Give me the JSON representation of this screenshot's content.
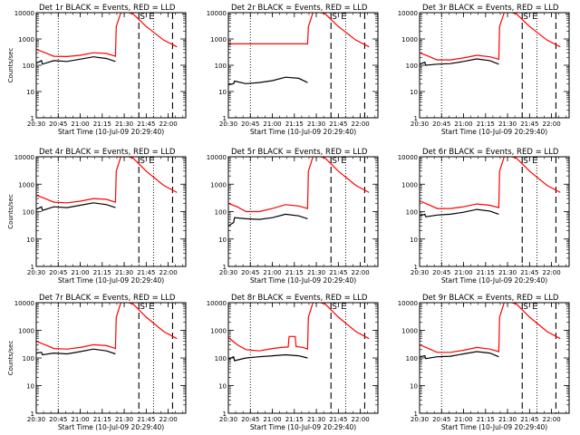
{
  "chart_data": [
    {
      "type": "line",
      "title": "Det 1r BLACK = Events, RED = LLD",
      "xlabel": "Start Time (10-Jul-09 20:29:40)",
      "ylabel": "Counts/sec",
      "ylog": true,
      "ylim": [
        1,
        10000
      ],
      "xlim": [
        20.5,
        22.2
      ],
      "xticks": [
        "20:30",
        "20:45",
        "21:00",
        "21:15",
        "21:30",
        "21:45",
        "22:00"
      ],
      "yticks": [
        "1",
        "10",
        "100",
        "1000",
        "10000"
      ],
      "dotted_lines_x": [
        "20:45",
        "21:50"
      ],
      "dashed_lines_x": [
        "21:40",
        "22:03"
      ],
      "markers": [
        "S",
        "E"
      ],
      "series": [
        {
          "color": "#ff0000",
          "x": [
            20.5,
            20.6,
            20.7,
            20.85,
            21.0,
            21.15,
            21.3,
            21.4,
            21.41,
            21.47,
            21.6,
            21.75,
            21.95,
            22.1
          ],
          "values": [
            400,
            300,
            220,
            215,
            240,
            300,
            280,
            220,
            3000,
            12000,
            9000,
            3000,
            900,
            500
          ]
        },
        {
          "color": "#000000",
          "x": [
            20.5,
            20.56,
            20.57,
            20.7,
            20.85,
            21.0,
            21.15,
            21.3,
            21.4
          ],
          "values": [
            120,
            150,
            110,
            150,
            140,
            170,
            210,
            180,
            140
          ]
        }
      ]
    },
    {
      "type": "line",
      "title": "Det 2r BLACK = Events, RED = LLD",
      "xlabel": "Start Time (10-Jul-09 20:29:40)",
      "ylabel": "",
      "ylog": true,
      "ylim": [
        1,
        10000
      ],
      "xlim": [
        20.5,
        22.2
      ],
      "xticks": [
        "20:30",
        "20:45",
        "21:00",
        "21:15",
        "21:30",
        "21:45",
        "22:00"
      ],
      "yticks": [
        "1",
        "10",
        "100",
        "1000",
        "10000"
      ],
      "dotted_lines_x": [
        "20:45",
        "21:50"
      ],
      "dashed_lines_x": [
        "21:40",
        "22:03"
      ],
      "markers": [
        "S",
        "E"
      ],
      "series": [
        {
          "color": "#ff0000",
          "x": [
            20.5,
            21.4,
            21.41,
            21.47,
            21.6,
            21.75,
            21.95,
            22.1
          ],
          "values": [
            650,
            650,
            3000,
            12000,
            9000,
            3000,
            900,
            500
          ]
        },
        {
          "color": "#000000",
          "x": [
            20.5,
            20.56,
            20.57,
            20.7,
            20.85,
            21.0,
            21.15,
            21.3,
            21.4
          ],
          "values": [
            18,
            20,
            25,
            20,
            22,
            26,
            35,
            32,
            22
          ]
        }
      ]
    },
    {
      "type": "line",
      "title": "Det 3r BLACK = Events, RED = LLD",
      "xlabel": "Start Time (10-Jul-09 20:29:40)",
      "ylabel": "",
      "ylog": true,
      "ylim": [
        1,
        10000
      ],
      "xlim": [
        20.5,
        22.2
      ],
      "xticks": [
        "20:30",
        "20:45",
        "21:00",
        "21:15",
        "21:30",
        "21:45",
        "22:00"
      ],
      "yticks": [
        "1",
        "10",
        "100",
        "1000",
        "10000"
      ],
      "dotted_lines_x": [
        "20:45",
        "21:50"
      ],
      "dashed_lines_x": [
        "21:40",
        "22:03"
      ],
      "markers": [
        "S",
        "E"
      ],
      "series": [
        {
          "color": "#ff0000",
          "x": [
            20.5,
            20.6,
            20.7,
            20.85,
            21.0,
            21.15,
            21.3,
            21.4,
            21.41,
            21.47,
            21.6,
            21.75,
            21.95,
            22.1
          ],
          "values": [
            300,
            220,
            160,
            160,
            190,
            240,
            210,
            170,
            3000,
            12000,
            9000,
            3000,
            900,
            500
          ]
        },
        {
          "color": "#000000",
          "x": [
            20.5,
            20.56,
            20.57,
            20.7,
            20.85,
            21.0,
            21.15,
            21.3,
            21.4
          ],
          "values": [
            110,
            130,
            100,
            110,
            115,
            140,
            175,
            150,
            110
          ]
        }
      ]
    },
    {
      "type": "line",
      "title": "Det 4r BLACK = Events, RED = LLD",
      "xlabel": "Start Time (10-Jul-09 20:29:40)",
      "ylabel": "Counts/sec",
      "ylog": true,
      "ylim": [
        1,
        10000
      ],
      "xlim": [
        20.5,
        22.2
      ],
      "xticks": [
        "20:30",
        "20:45",
        "21:00",
        "21:15",
        "21:30",
        "21:45",
        "22:00"
      ],
      "yticks": [
        "1",
        "10",
        "100",
        "1000",
        "10000"
      ],
      "dotted_lines_x": [
        "20:45",
        "21:50"
      ],
      "dashed_lines_x": [
        "21:40",
        "22:03"
      ],
      "markers": [
        "S",
        "E"
      ],
      "series": [
        {
          "color": "#ff0000",
          "x": [
            20.5,
            20.6,
            20.7,
            20.85,
            21.0,
            21.15,
            21.3,
            21.4,
            21.41,
            21.47,
            21.6,
            21.75,
            21.95,
            22.1
          ],
          "values": [
            400,
            300,
            220,
            210,
            240,
            300,
            280,
            220,
            3000,
            12000,
            9000,
            3000,
            900,
            500
          ]
        },
        {
          "color": "#000000",
          "x": [
            20.5,
            20.56,
            20.57,
            20.7,
            20.85,
            21.0,
            21.15,
            21.3,
            21.4
          ],
          "values": [
            120,
            150,
            110,
            150,
            140,
            170,
            210,
            180,
            140
          ]
        }
      ]
    },
    {
      "type": "line",
      "title": "Det 5r BLACK = Events, RED = LLD",
      "xlabel": "Start Time (10-Jul-09 20:29:40)",
      "ylabel": "",
      "ylog": true,
      "ylim": [
        1,
        10000
      ],
      "xlim": [
        20.5,
        22.2
      ],
      "xticks": [
        "20:30",
        "20:45",
        "21:00",
        "21:15",
        "21:30",
        "21:45",
        "22:00"
      ],
      "yticks": [
        "1",
        "10",
        "100",
        "1000",
        "10000"
      ],
      "dotted_lines_x": [
        "20:45",
        "21:50"
      ],
      "dashed_lines_x": [
        "21:40",
        "22:03"
      ],
      "markers": [
        "S",
        "E"
      ],
      "series": [
        {
          "color": "#ff0000",
          "x": [
            20.5,
            20.6,
            20.7,
            20.85,
            21.0,
            21.15,
            21.3,
            21.4,
            21.41,
            21.47,
            21.6,
            21.75,
            21.95,
            22.1
          ],
          "values": [
            200,
            150,
            100,
            100,
            130,
            180,
            160,
            130,
            3000,
            12000,
            9000,
            3000,
            900,
            500
          ]
        },
        {
          "color": "#000000",
          "x": [
            20.5,
            20.56,
            20.57,
            20.7,
            20.85,
            21.0,
            21.15,
            21.3,
            21.4
          ],
          "values": [
            30,
            40,
            60,
            55,
            52,
            60,
            80,
            70,
            55
          ]
        }
      ]
    },
    {
      "type": "line",
      "title": "Det 6r BLACK = Events, RED = LLD",
      "xlabel": "Start Time (10-Jul-09 20:29:40)",
      "ylabel": "",
      "ylog": true,
      "ylim": [
        1,
        10000
      ],
      "xlim": [
        20.5,
        22.2
      ],
      "xticks": [
        "20:30",
        "20:45",
        "21:00",
        "21:15",
        "21:30",
        "21:45",
        "22:00"
      ],
      "yticks": [
        "1",
        "10",
        "100",
        "1000",
        "10000"
      ],
      "dotted_lines_x": [
        "20:45",
        "21:50"
      ],
      "dashed_lines_x": [
        "21:40",
        "22:03"
      ],
      "markers": [
        "S",
        "E"
      ],
      "series": [
        {
          "color": "#ff0000",
          "x": [
            20.5,
            20.6,
            20.7,
            20.85,
            21.0,
            21.15,
            21.3,
            21.4,
            21.41,
            21.47,
            21.6,
            21.75,
            21.95,
            22.1
          ],
          "values": [
            250,
            180,
            130,
            130,
            150,
            190,
            170,
            140,
            3000,
            12000,
            9000,
            3000,
            900,
            500
          ]
        },
        {
          "color": "#000000",
          "x": [
            20.5,
            20.56,
            20.57,
            20.7,
            20.85,
            21.0,
            21.15,
            21.3,
            21.4
          ],
          "values": [
            70,
            80,
            65,
            75,
            80,
            95,
            120,
            105,
            80
          ]
        }
      ]
    },
    {
      "type": "line",
      "title": "Det 7r BLACK = Events, RED = LLD",
      "xlabel": "Start Time (10-Jul-09 20:29:40)",
      "ylabel": "Counts/sec",
      "ylog": true,
      "ylim": [
        1,
        10000
      ],
      "xlim": [
        20.5,
        22.2
      ],
      "xticks": [
        "20:30",
        "20:45",
        "21:00",
        "21:15",
        "21:30",
        "21:45",
        "22:00"
      ],
      "yticks": [
        "1",
        "10",
        "100",
        "1000",
        "10000"
      ],
      "dotted_lines_x": [
        "20:45",
        "21:50"
      ],
      "dashed_lines_x": [
        "21:40",
        "22:03"
      ],
      "markers": [
        "S",
        "E"
      ],
      "series": [
        {
          "color": "#ff0000",
          "x": [
            20.5,
            20.6,
            20.7,
            20.85,
            21.0,
            21.15,
            21.3,
            21.4,
            21.41,
            21.47,
            21.6,
            21.75,
            21.95,
            22.1
          ],
          "values": [
            400,
            300,
            220,
            210,
            240,
            300,
            280,
            220,
            3000,
            12000,
            9000,
            3000,
            900,
            500
          ]
        },
        {
          "color": "#000000",
          "x": [
            20.5,
            20.56,
            20.57,
            20.7,
            20.85,
            21.0,
            21.15,
            21.3,
            21.4
          ],
          "values": [
            150,
            160,
            130,
            150,
            140,
            170,
            210,
            180,
            140
          ]
        }
      ]
    },
    {
      "type": "line",
      "title": "Det 8r BLACK = Events, RED = LLD",
      "xlabel": "Start Time (10-Jul-09 20:29:40)",
      "ylabel": "",
      "ylog": true,
      "ylim": [
        1,
        10000
      ],
      "xlim": [
        20.5,
        22.2
      ],
      "xticks": [
        "20:30",
        "20:45",
        "21:00",
        "21:15",
        "21:30",
        "21:45",
        "22:00"
      ],
      "yticks": [
        "1",
        "10",
        "100",
        "1000",
        "10000"
      ],
      "dotted_lines_x": [
        "20:45",
        "21:50"
      ],
      "dashed_lines_x": [
        "21:40",
        "22:03"
      ],
      "markers": [
        "S",
        "E"
      ],
      "series": [
        {
          "color": "#ff0000",
          "x": [
            20.5,
            20.6,
            20.7,
            20.85,
            21.0,
            21.1,
            21.18,
            21.19,
            21.26,
            21.27,
            21.35,
            21.4,
            21.41,
            21.47,
            21.6,
            21.75,
            21.95,
            22.1
          ],
          "values": [
            550,
            300,
            200,
            180,
            220,
            240,
            250,
            600,
            600,
            260,
            240,
            210,
            3000,
            12000,
            9000,
            3000,
            900,
            500
          ]
        },
        {
          "color": "#000000",
          "x": [
            20.5,
            20.56,
            20.57,
            20.7,
            20.85,
            21.0,
            21.15,
            21.3,
            21.4
          ],
          "values": [
            90,
            110,
            80,
            100,
            110,
            120,
            130,
            120,
            100
          ]
        }
      ]
    },
    {
      "type": "line",
      "title": "Det 9r BLACK = Events, RED = LLD",
      "xlabel": "Start Time (10-Jul-09 20:29:40)",
      "ylabel": "",
      "ylog": true,
      "ylim": [
        1,
        10000
      ],
      "xlim": [
        20.5,
        22.2
      ],
      "xticks": [
        "20:30",
        "20:45",
        "21:00",
        "21:15",
        "21:30",
        "21:45",
        "22:00"
      ],
      "yticks": [
        "1",
        "10",
        "100",
        "1000",
        "10000"
      ],
      "dotted_lines_x": [
        "20:45",
        "21:50"
      ],
      "dashed_lines_x": [
        "21:40",
        "22:03"
      ],
      "markers": [
        "S",
        "E"
      ],
      "series": [
        {
          "color": "#ff0000",
          "x": [
            20.5,
            20.6,
            20.7,
            20.85,
            21.0,
            21.15,
            21.3,
            21.4,
            21.41,
            21.47,
            21.6,
            21.75,
            21.95,
            22.1
          ],
          "values": [
            300,
            220,
            160,
            160,
            190,
            240,
            210,
            170,
            3000,
            12000,
            9000,
            3000,
            900,
            500
          ]
        },
        {
          "color": "#000000",
          "x": [
            20.5,
            20.56,
            20.57,
            20.7,
            20.85,
            21.0,
            21.15,
            21.3,
            21.4
          ],
          "values": [
            110,
            120,
            95,
            110,
            115,
            140,
            170,
            150,
            110
          ]
        }
      ]
    }
  ]
}
